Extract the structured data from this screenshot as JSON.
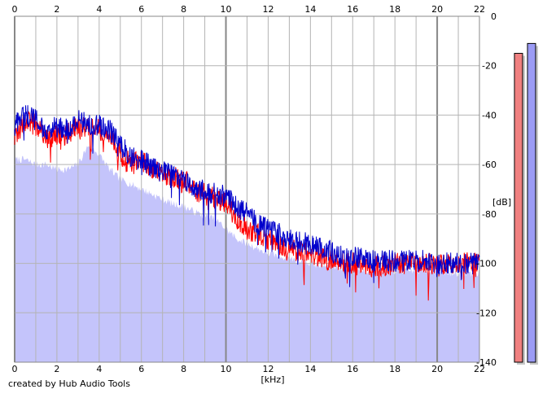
{
  "credit": "created by Hub Audio Tools",
  "colors": {
    "background": "#ffffff",
    "fill": "#c4c4fb",
    "grid_minor": "#b4b4b4",
    "grid_major": "#888888",
    "left_channel": "#ff0000",
    "right_channel": "#0000cc",
    "meter_left": "#f08080",
    "meter_right": "#9b9bf5"
  },
  "chart_data": {
    "type": "line",
    "title": "",
    "xlabel": "[kHz]",
    "ylabel": "[dB]",
    "xlim": [
      0,
      22
    ],
    "ylim": [
      -140,
      0
    ],
    "x_ticks": [
      "0",
      "2",
      "4",
      "6",
      "8",
      "10",
      "12",
      "14",
      "16",
      "18",
      "20",
      "22"
    ],
    "y_ticks": [
      "0",
      "-20",
      "-40",
      "-60",
      "-80",
      "-100",
      "-120",
      "-140"
    ],
    "grid": true,
    "major_grid_x": [
      0,
      10,
      20
    ],
    "x": [
      0,
      0.5,
      1,
      1.5,
      2,
      2.5,
      3,
      3.5,
      4,
      4.5,
      5,
      5.5,
      6,
      6.5,
      7,
      7.5,
      8,
      8.5,
      9,
      9.5,
      10,
      10.5,
      11,
      11.5,
      12,
      12.5,
      13,
      13.5,
      14,
      14.5,
      15,
      15.5,
      16,
      16.5,
      17,
      17.5,
      18,
      18.5,
      19,
      19.5,
      20,
      20.5,
      21,
      21.5,
      22
    ],
    "series": [
      {
        "channel": "left",
        "values": [
          -50,
          -42,
          -44,
          -50,
          -48,
          -48,
          -44,
          -45,
          -46,
          -48,
          -56,
          -60,
          -58,
          -62,
          -64,
          -65,
          -66,
          -70,
          -72,
          -74,
          -75,
          -82,
          -86,
          -88,
          -90,
          -92,
          -94,
          -95,
          -96,
          -98,
          -99,
          -100,
          -100,
          -101,
          -101,
          -101,
          -100,
          -100,
          -100,
          -100,
          -101,
          -100,
          -100,
          -100,
          -100
        ]
      },
      {
        "channel": "right",
        "values": [
          -44,
          -40,
          -42,
          -46,
          -45,
          -46,
          -42,
          -44,
          -44,
          -46,
          -52,
          -57,
          -58,
          -61,
          -63,
          -64,
          -66,
          -69,
          -71,
          -72,
          -73,
          -77,
          -80,
          -84,
          -86,
          -88,
          -90,
          -91,
          -92,
          -94,
          -95,
          -97,
          -97,
          -98,
          -99,
          -99,
          -99,
          -99,
          -99,
          -99,
          -100,
          -100,
          -100,
          -100,
          -100
        ]
      }
    ],
    "fill_envelope": [
      -58,
      -58,
      -60,
      -60,
      -62,
      -62,
      -60,
      -52,
      -56,
      -62,
      -66,
      -68,
      -70,
      -72,
      -74,
      -76,
      -77,
      -79,
      -81,
      -82,
      -86,
      -90,
      -92,
      -94,
      -96,
      -97,
      -98,
      -99,
      -100,
      -101,
      -101,
      -102,
      -102,
      -103,
      -103,
      -103,
      -103,
      -103,
      -103,
      -103,
      -103,
      -104,
      -104,
      -104,
      -104
    ],
    "meters": [
      {
        "channel": "left",
        "top_db": -15
      },
      {
        "channel": "right",
        "top_db": -11
      }
    ]
  }
}
